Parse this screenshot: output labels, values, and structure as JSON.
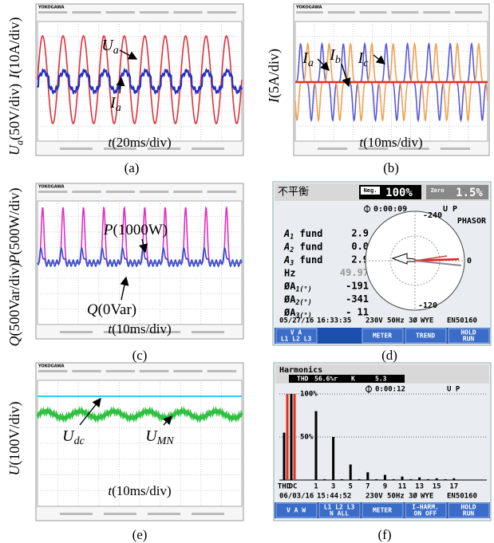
{
  "scope_brand": "YOKOGAWA",
  "panels": {
    "a": {
      "caption": "(a)",
      "y_labels": [
        [
          {
            "t": "I"
          },
          {
            "t": "(10A/div)"
          }
        ],
        [
          {
            "t": "U"
          },
          {
            "sub": "a"
          },
          {
            "t": "(50V/div)"
          }
        ]
      ],
      "x_label": [
        {
          "t": "t"
        },
        {
          "t": "(20ms/div)"
        }
      ],
      "annotations": [
        [
          {
            "t": "U"
          },
          {
            "sub": "a"
          }
        ],
        [
          {
            "t": "I"
          },
          {
            "sub": "a"
          }
        ]
      ]
    },
    "b": {
      "caption": "(b)",
      "y_labels": [
        [
          {
            "t": "I"
          },
          {
            "t": "(5A/div)"
          }
        ]
      ],
      "x_label": [
        {
          "t": "t"
        },
        {
          "t": "(10ms/div)"
        }
      ],
      "annotations": [
        [
          {
            "t": "I"
          },
          {
            "sub": "a"
          }
        ],
        [
          {
            "t": "I"
          },
          {
            "sub": "b"
          }
        ],
        [
          {
            "t": "I"
          },
          {
            "sub": "c"
          }
        ]
      ]
    },
    "c": {
      "caption": "(c)",
      "y_labels": [
        [
          {
            "t": "Q"
          },
          {
            "t": "(500Var/div)"
          }
        ],
        [
          {
            "t": "P"
          },
          {
            "t": "(500W/div)"
          }
        ]
      ],
      "x_label": [
        {
          "t": "t"
        },
        {
          "t": "(10ms/div)"
        }
      ],
      "annotations": [
        [
          {
            "t": "P"
          },
          {
            "t": "(1000W)"
          }
        ],
        [
          {
            "t": "Q"
          },
          {
            "t": "(0Var)"
          }
        ]
      ]
    },
    "d": {
      "caption": "(d)",
      "title": "不平衡",
      "neg_label": "Neg.",
      "neg_value": "100%",
      "zero_label": "Zero",
      "zero_value": "1.5%",
      "timer": "0:00:09",
      "status": "U P",
      "mode": "PHASOR",
      "rows": [
        {
          "label": [
            {
              "t": "A"
            },
            {
              "sub": "1"
            },
            {
              "t": " fund"
            }
          ],
          "value": "2.9"
        },
        {
          "label": [
            {
              "t": "A"
            },
            {
              "sub": "2"
            },
            {
              "t": " fund"
            }
          ],
          "value": "0.0"
        },
        {
          "label": [
            {
              "t": "A"
            },
            {
              "sub": "3"
            },
            {
              "t": " fund"
            }
          ],
          "value": "2.9"
        },
        {
          "label": [
            {
              "t": "Hz"
            }
          ],
          "value": "49.97"
        },
        {
          "label": [
            {
              "t": "ØA"
            },
            {
              "sub": "1(°)"
            }
          ],
          "value": "-191"
        },
        {
          "label": [
            {
              "t": "ØA"
            },
            {
              "sub": "2(°)"
            }
          ],
          "value": "-341"
        },
        {
          "label": [
            {
              "t": "ØA"
            },
            {
              "sub": "3(°)"
            }
          ],
          "value": "- 11"
        }
      ],
      "polar_labels": [
        "-240",
        "-120",
        "0"
      ],
      "footer": [
        "05/27/16",
        "16:33:35",
        "230V",
        "50Hz",
        "3Ø",
        "WYE",
        "EN50160"
      ],
      "buttons": [
        [
          "V A",
          "L1 L2 L3"
        ],
        [
          "METER"
        ],
        [
          "TREND"
        ],
        [
          "HOLD",
          "RUN"
        ]
      ]
    },
    "e": {
      "caption": "(e)",
      "y_labels": [
        [
          {
            "t": "U"
          },
          {
            "t": "(100V/div)"
          }
        ]
      ],
      "x_label": [
        {
          "t": "t"
        },
        {
          "t": "(10ms/div)"
        }
      ],
      "annotations": [
        [
          {
            "t": "U"
          },
          {
            "sub": "dc"
          }
        ],
        [
          {
            "t": "U"
          },
          {
            "sub": "MN"
          }
        ]
      ]
    },
    "f": {
      "caption": "(f)",
      "title": "Harmonics",
      "thd_label": "THD",
      "thd_value": "56.6%r",
      "k_label": "K",
      "k_value": "5.3",
      "timer": "0:00:12",
      "status": "U P",
      "chart": {
        "type": "bar",
        "categories": [
          "THD",
          "DC",
          "1",
          null,
          "3",
          null,
          "5",
          null,
          "7",
          null,
          "9",
          null,
          "11",
          null,
          "13",
          null,
          "15",
          null,
          "17"
        ],
        "series": [
          {
            "color": "#000000",
            "values": [
              55,
              100,
              80,
              1,
              50,
              1,
              18,
              1,
              9,
              1,
              6,
              1,
              4,
              1,
              3,
              1,
              2,
              1,
              2
            ]
          },
          {
            "color": "#e03020",
            "values": [
              100,
              100,
              null,
              null,
              null,
              null,
              null,
              null,
              null,
              null,
              null,
              null,
              null,
              null,
              null,
              null,
              null,
              null,
              null
            ]
          }
        ],
        "ylim": [
          0,
          100
        ],
        "yticks": [
          {
            "value": 100,
            "label": "100%"
          },
          {
            "value": 50,
            "label": "50%"
          }
        ]
      },
      "footer": [
        "06/03/16",
        "15:44:52",
        "230V",
        "50Hz",
        "3Ø",
        "WYE",
        "EN50160"
      ],
      "buttons": [
        [
          "V A W"
        ],
        [
          "L1 L2 L3",
          "N ALL"
        ],
        [
          "METER"
        ],
        [
          "I-HARM.",
          "ON OFF"
        ],
        [
          "HOLD",
          "RUN"
        ]
      ]
    }
  }
}
